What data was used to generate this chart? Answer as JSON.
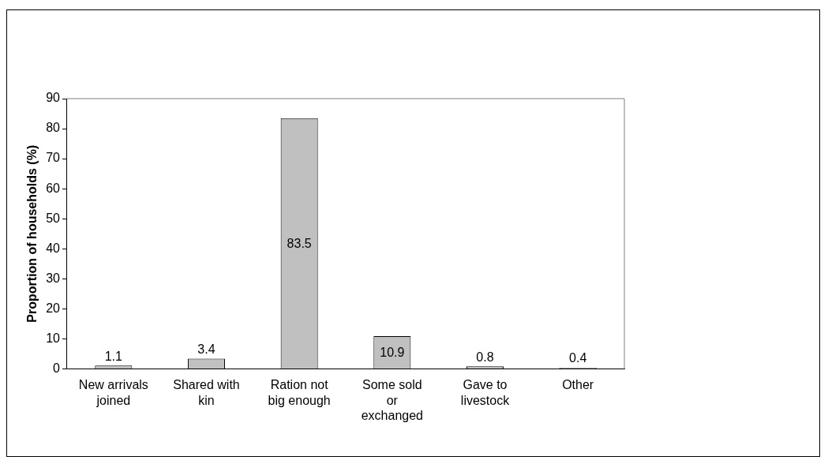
{
  "chart_data": {
    "type": "bar",
    "ylabel": "Proportion of households (%)",
    "categories": [
      "New arrivals joined",
      "Shared with kin",
      "Ration not big enough",
      "Some sold or exchanged",
      "Gave to livestock",
      "Other"
    ],
    "values": [
      1.1,
      3.4,
      83.5,
      10.9,
      0.8,
      0.4
    ],
    "color": "#c0c0c0",
    "ylim": [
      0,
      90
    ],
    "yticks": [
      0,
      10,
      20,
      30,
      40,
      50,
      60,
      70,
      80,
      90
    ],
    "grid": false,
    "legend": false,
    "data_labels": true
  }
}
